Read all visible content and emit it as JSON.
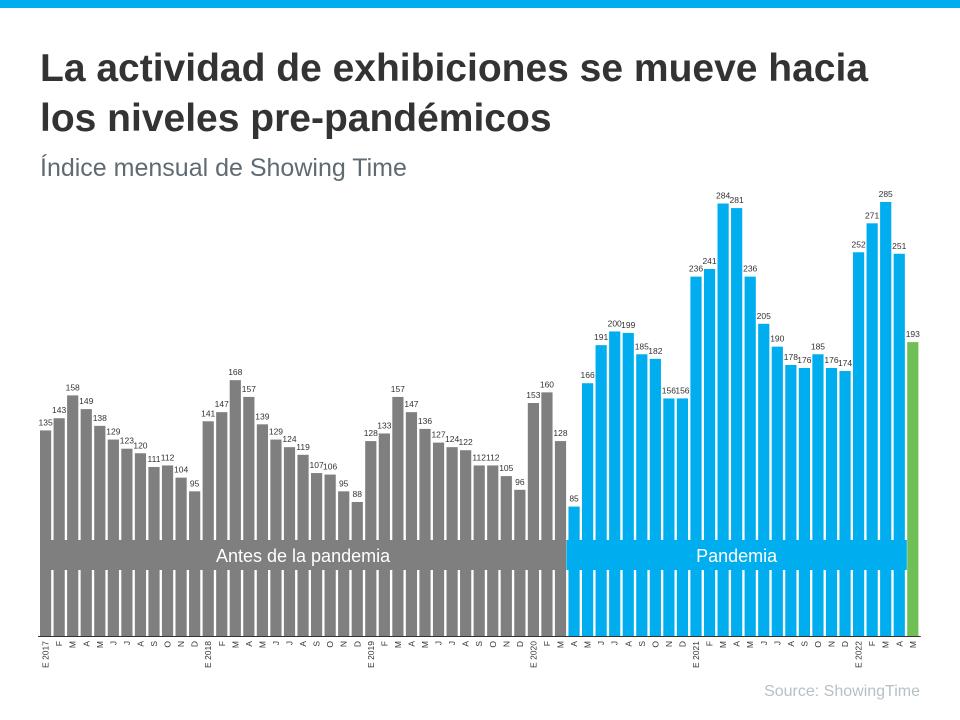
{
  "header": {
    "title": "La actividad de exhibiciones se mueve hacia los niveles pre-pandémicos",
    "subtitle": "Índice mensual de Showing Time"
  },
  "source": "Source: ShowingTime",
  "colors": {
    "pre": "#7f7f7f",
    "pandemic": "#00aeef",
    "latest": "#70bf54",
    "accent": "#00aeef"
  },
  "chart_data": {
    "type": "bar",
    "title": "",
    "xlabel": "",
    "ylabel": "",
    "grid": false,
    "categories": [
      "E 2017",
      "F",
      "M",
      "A",
      "M",
      "J",
      "J",
      "A",
      "S",
      "O",
      "N",
      "D",
      "E 2018",
      "F",
      "M",
      "A",
      "M",
      "J",
      "J",
      "A",
      "S",
      "O",
      "N",
      "D",
      "E 2019",
      "F",
      "M",
      "A",
      "M",
      "J",
      "J",
      "A",
      "S",
      "O",
      "N",
      "D",
      "E 2020",
      "F",
      "M",
      "A",
      "M",
      "J",
      "J",
      "A",
      "S",
      "O",
      "N",
      "D",
      "E 2021",
      "F",
      "M",
      "A",
      "M",
      "J",
      "J",
      "A",
      "S",
      "O",
      "N",
      "D",
      "E 2022",
      "F",
      "M",
      "A",
      "M"
    ],
    "values": [
      135,
      143,
      158,
      149,
      138,
      129,
      123,
      120,
      111,
      112,
      104,
      95,
      141,
      147,
      168,
      157,
      139,
      129,
      124,
      119,
      107,
      106,
      95,
      88,
      128,
      133,
      157,
      147,
      136,
      127,
      124,
      122,
      112,
      112,
      105,
      96,
      153,
      160,
      128,
      85,
      166,
      191,
      200,
      199,
      185,
      182,
      156,
      156,
      236,
      241,
      284,
      281,
      236,
      205,
      190,
      178,
      176,
      185,
      176,
      174,
      252,
      271,
      285,
      251,
      193
    ],
    "ylim": [
      0,
      290
    ],
    "periods": [
      {
        "label": "Antes de la pandemia",
        "start_index": 0,
        "end_index": 38,
        "color": "#7f7f7f"
      },
      {
        "label": "Pandemia",
        "start_index": 39,
        "end_index": 63,
        "color": "#00aeef"
      }
    ],
    "highlight_index": 64
  }
}
